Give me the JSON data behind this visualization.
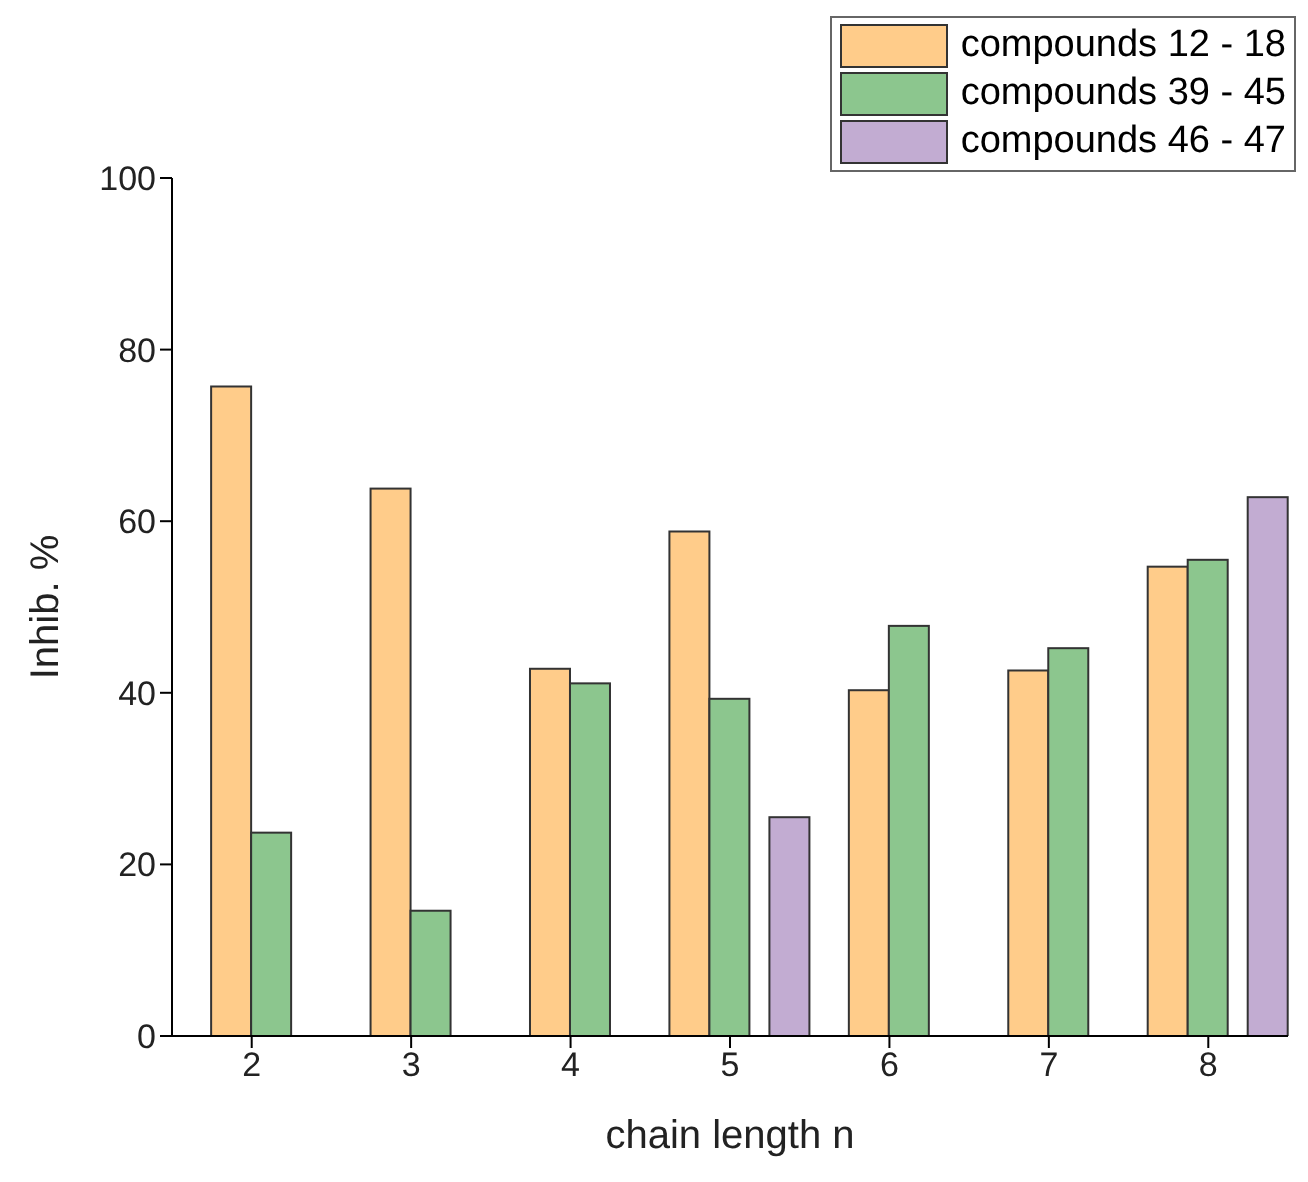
{
  "chart_data": {
    "type": "bar",
    "xlabel": "chain length n",
    "ylabel": "Inhib. %",
    "categories": [
      "2",
      "3",
      "4",
      "5",
      "6",
      "7",
      "8"
    ],
    "series": [
      {
        "name": "compounds 12 - 18",
        "color": "#ffcc8a",
        "values": [
          75.7,
          63.8,
          42.8,
          58.8,
          40.3,
          42.6,
          54.7
        ]
      },
      {
        "name": "compounds 39 - 45",
        "color": "#8cc68e",
        "values": [
          23.7,
          14.6,
          41.1,
          39.3,
          47.8,
          45.2,
          55.5
        ]
      },
      {
        "name": "compounds 46 - 47",
        "color": "#c2acd2",
        "values": [
          null,
          null,
          null,
          25.5,
          null,
          null,
          62.8
        ]
      }
    ],
    "ylim": [
      0,
      100
    ],
    "yticks": [
      0,
      20,
      40,
      60,
      80,
      100
    ],
    "grid": false,
    "legend": "top right"
  }
}
